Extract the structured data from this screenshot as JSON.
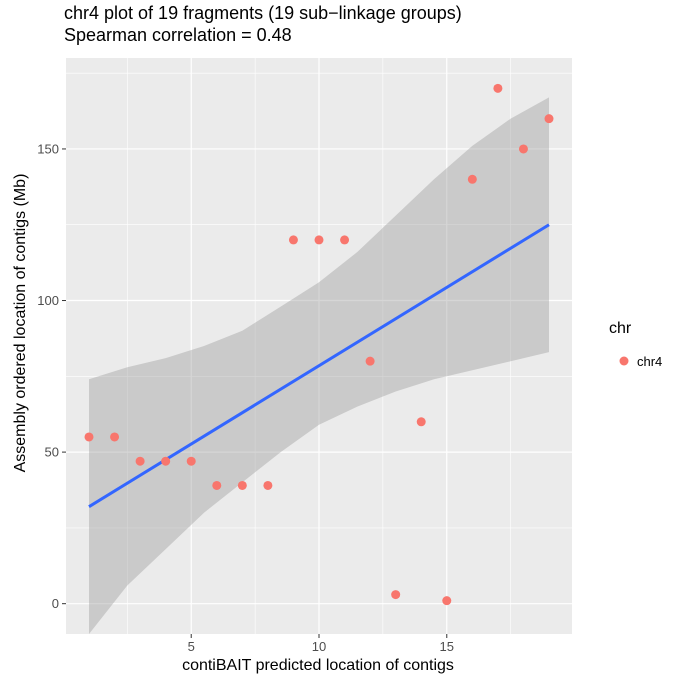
{
  "chart_data": {
    "type": "scatter",
    "title": "chr4 plot of 19 fragments (19 sub−linkage groups)",
    "subtitle": "Spearman correlation = 0.48",
    "xlabel": "contiBAIT predicted location of contigs",
    "ylabel": "Assembly ordered location of contigs (Mb)",
    "xlim": [
      0.1,
      19.9
    ],
    "ylim": [
      -10,
      180
    ],
    "x_ticks": [
      5,
      10,
      15
    ],
    "y_ticks": [
      0,
      50,
      100,
      150
    ],
    "x_tick_labels": [
      "5",
      "10",
      "15"
    ],
    "y_tick_labels": [
      "0",
      "50",
      "100",
      "150"
    ],
    "grid": true,
    "legend": {
      "title": "chr",
      "position": "right",
      "entries": [
        "chr4"
      ]
    },
    "series": [
      {
        "name": "chr4",
        "color": "#F8766D",
        "x": [
          1,
          2,
          3,
          4,
          5,
          6,
          7,
          8,
          9,
          10,
          11,
          12,
          13,
          14,
          15,
          16,
          17,
          18,
          19
        ],
        "y": [
          55,
          55,
          47,
          47,
          47,
          39,
          39,
          39,
          120,
          120,
          120,
          80,
          3,
          60,
          1,
          140,
          170,
          150,
          160
        ]
      }
    ],
    "fit": {
      "color": "#3366FF",
      "x": [
        1,
        19
      ],
      "y": [
        32,
        125
      ],
      "ci_color": "#999999",
      "ci": [
        {
          "x": 1,
          "lower": -10,
          "upper": 74
        },
        {
          "x": 2.5,
          "lower": 6,
          "upper": 78
        },
        {
          "x": 4,
          "lower": 18,
          "upper": 81
        },
        {
          "x": 5.5,
          "lower": 30,
          "upper": 85
        },
        {
          "x": 7,
          "lower": 40,
          "upper": 90
        },
        {
          "x": 8.5,
          "lower": 50,
          "upper": 98
        },
        {
          "x": 10,
          "lower": 59,
          "upper": 106
        },
        {
          "x": 11.5,
          "lower": 65,
          "upper": 116
        },
        {
          "x": 13,
          "lower": 70,
          "upper": 128
        },
        {
          "x": 14.5,
          "lower": 74,
          "upper": 140
        },
        {
          "x": 16,
          "lower": 77,
          "upper": 151
        },
        {
          "x": 17.5,
          "lower": 80,
          "upper": 160
        },
        {
          "x": 19,
          "lower": 83,
          "upper": 167
        }
      ]
    }
  }
}
